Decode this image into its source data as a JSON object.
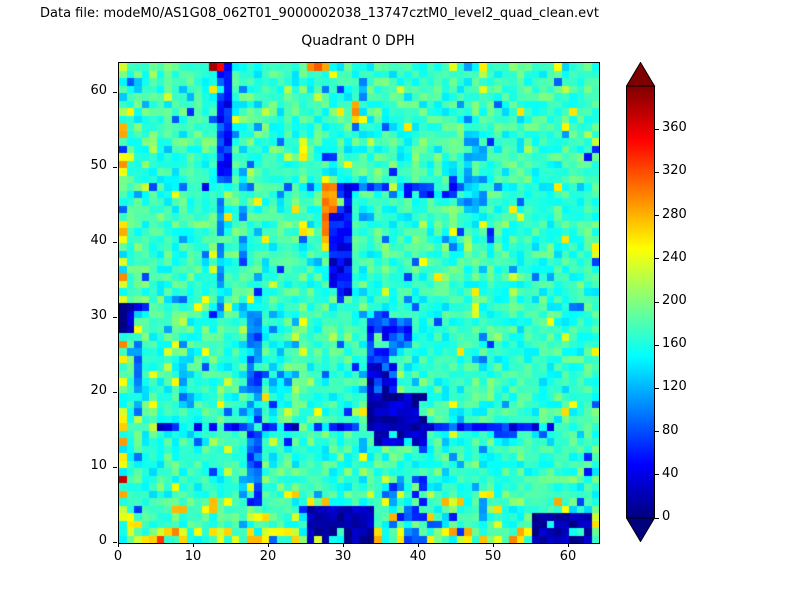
{
  "header": {
    "datafile_label": "Data file: modeM0/AS1G08_062T01_9000002038_13747cztM0_level2_quad_clean.evt"
  },
  "chart_data": {
    "type": "heatmap",
    "title": "Quadrant 0 DPH",
    "xlabel": "",
    "ylabel": "",
    "grid_size": 64,
    "xlim": [
      0,
      64
    ],
    "ylim": [
      0,
      64
    ],
    "x_ticks": [
      0,
      10,
      20,
      30,
      40,
      50,
      60
    ],
    "y_ticks": [
      0,
      10,
      20,
      30,
      40,
      50,
      60
    ],
    "grid": false,
    "colorbar": {
      "colormap": "jet",
      "extend": "both",
      "ticks": [
        0,
        40,
        80,
        120,
        160,
        200,
        240,
        280,
        320,
        360
      ],
      "vmin": 0,
      "scale_max": 400,
      "under_color": "#00007f",
      "over_color": "#7f0000"
    },
    "background_mean": 172,
    "background_noise": 20,
    "seed": 1337,
    "features": [
      {
        "x": [
          16,
          16
        ],
        "y": [
          0,
          63
        ],
        "v": [
          95,
          145
        ],
        "p": 0.25
      },
      {
        "x": [
          32,
          32
        ],
        "y": [
          0,
          63
        ],
        "v": [
          95,
          145
        ],
        "p": 0.25
      },
      {
        "x": [
          48,
          48
        ],
        "y": [
          0,
          63
        ],
        "v": [
          95,
          145
        ],
        "p": 0.25
      },
      {
        "x": [
          0,
          63
        ],
        "y": [
          0,
          63
        ],
        "v": [
          55,
          135
        ],
        "p": 0.04
      },
      {
        "x": [
          0,
          63
        ],
        "y": [
          0,
          63
        ],
        "v": [
          215,
          265
        ],
        "p": 0.035
      },
      {
        "x": [
          0,
          63
        ],
        "y": [
          0,
          6
        ],
        "v": [
          230,
          285
        ],
        "p": 0.12
      },
      {
        "x": [
          0,
          63
        ],
        "y": [
          0,
          1
        ],
        "v": [
          225,
          300
        ],
        "p": 0.35
      },
      {
        "x": [
          0,
          0
        ],
        "y": [
          0,
          63
        ],
        "v": [
          220,
          300
        ],
        "p": 0.3
      },
      {
        "x": [
          4,
          56
        ],
        "y": [
          15,
          15
        ],
        "v": [
          15,
          75
        ],
        "p": 0.55
      },
      {
        "x": [
          50,
          58
        ],
        "y": [
          14,
          15
        ],
        "v": [
          30,
          90
        ],
        "p": 0.6
      },
      {
        "x": [
          0,
          8
        ],
        "y": [
          31,
          31
        ],
        "v": [
          20,
          90
        ],
        "p": 0.5
      },
      {
        "x": [
          5,
          45
        ],
        "y": [
          47,
          47
        ],
        "v": [
          40,
          105
        ],
        "p": 0.35
      },
      {
        "x": [
          17,
          18
        ],
        "y": [
          5,
          30
        ],
        "v": [
          55,
          115
        ],
        "p": 0.85
      },
      {
        "x": [
          13,
          13
        ],
        "y": [
          30,
          47
        ],
        "v": [
          85,
          140
        ],
        "p": 0.8
      },
      {
        "x": [
          13,
          14
        ],
        "y": [
          48,
          63
        ],
        "v": [
          30,
          95
        ],
        "p": 0.95
      },
      {
        "x": [
          46,
          47
        ],
        "y": [
          44,
          57
        ],
        "v": [
          95,
          150
        ],
        "p": 0.6
      },
      {
        "x": [
          2,
          2
        ],
        "y": [
          17,
          26
        ],
        "v": [
          75,
          130
        ],
        "p": 0.7
      },
      {
        "x": [
          8,
          9
        ],
        "y": [
          18,
          26
        ],
        "v": [
          80,
          140
        ],
        "p": 0.5
      },
      {
        "x": [
          20,
          23
        ],
        "y": [
          20,
          31
        ],
        "v": [
          90,
          150
        ],
        "p": 0.4
      },
      {
        "x": [
          36,
          40
        ],
        "y": [
          0,
          8
        ],
        "v": [
          55,
          120
        ],
        "p": 0.45
      },
      {
        "x": [
          38,
          44
        ],
        "y": [
          46,
          47
        ],
        "v": [
          30,
          85
        ],
        "p": 0.6
      },
      {
        "x": [
          28,
          30
        ],
        "y": [
          32,
          47
        ],
        "v": [
          15,
          75
        ],
        "p": 0.9
      },
      {
        "x": [
          27,
          27
        ],
        "y": [
          39,
          47
        ],
        "v": [
          255,
          340
        ],
        "p": 0.9
      },
      {
        "x": [
          28,
          28
        ],
        "y": [
          44,
          47
        ],
        "v": [
          280,
          360
        ],
        "p": 0.7
      },
      {
        "x": [
          33,
          36
        ],
        "y": [
          20,
          30
        ],
        "v": [
          40,
          100
        ],
        "p": 0.75
      },
      {
        "x": [
          36,
          38
        ],
        "y": [
          26,
          29
        ],
        "v": [
          45,
          110
        ],
        "p": 0.7
      },
      {
        "x": [
          33,
          35
        ],
        "y": [
          16,
          23
        ],
        "v": [
          5,
          50
        ],
        "p": 0.8
      },
      {
        "x": [
          34,
          40
        ],
        "y": [
          13,
          19
        ],
        "v": [
          0,
          45
        ],
        "p": 0.85
      },
      {
        "x": [
          25,
          33
        ],
        "y": [
          0,
          4
        ],
        "v": [
          0,
          35
        ],
        "p": 0.92
      },
      {
        "x": [
          55,
          62
        ],
        "y": [
          0,
          3
        ],
        "v": [
          0,
          35
        ],
        "p": 0.9
      },
      {
        "x": [
          0,
          1
        ],
        "y": [
          28,
          31
        ],
        "v": [
          0,
          45
        ],
        "p": 0.9
      },
      {
        "x": [
          31,
          32
        ],
        "y": [
          56,
          58
        ],
        "v": [
          250,
          300
        ],
        "p": 0.85
      }
    ],
    "pixels": [
      {
        "x": 12,
        "y": 63,
        "v": 385
      },
      {
        "x": 13,
        "y": 63,
        "v": 350
      },
      {
        "x": 25,
        "y": 63,
        "v": 295
      },
      {
        "x": 26,
        "y": 63,
        "v": 315
      },
      {
        "x": 27,
        "y": 63,
        "v": 285
      },
      {
        "x": 0,
        "y": 8,
        "v": 370
      },
      {
        "x": 5,
        "y": 0,
        "v": 330
      },
      {
        "x": 63,
        "y": 39,
        "v": 255
      },
      {
        "x": 63,
        "y": 38,
        "v": 240
      },
      {
        "x": 58,
        "y": 63,
        "v": 250
      },
      {
        "x": 44,
        "y": 63,
        "v": 240
      },
      {
        "x": 0,
        "y": 55,
        "v": 280
      },
      {
        "x": 0,
        "y": 42,
        "v": 260
      },
      {
        "x": 47,
        "y": 31,
        "v": 240
      },
      {
        "x": 53,
        "y": 43,
        "v": 235
      }
    ]
  }
}
